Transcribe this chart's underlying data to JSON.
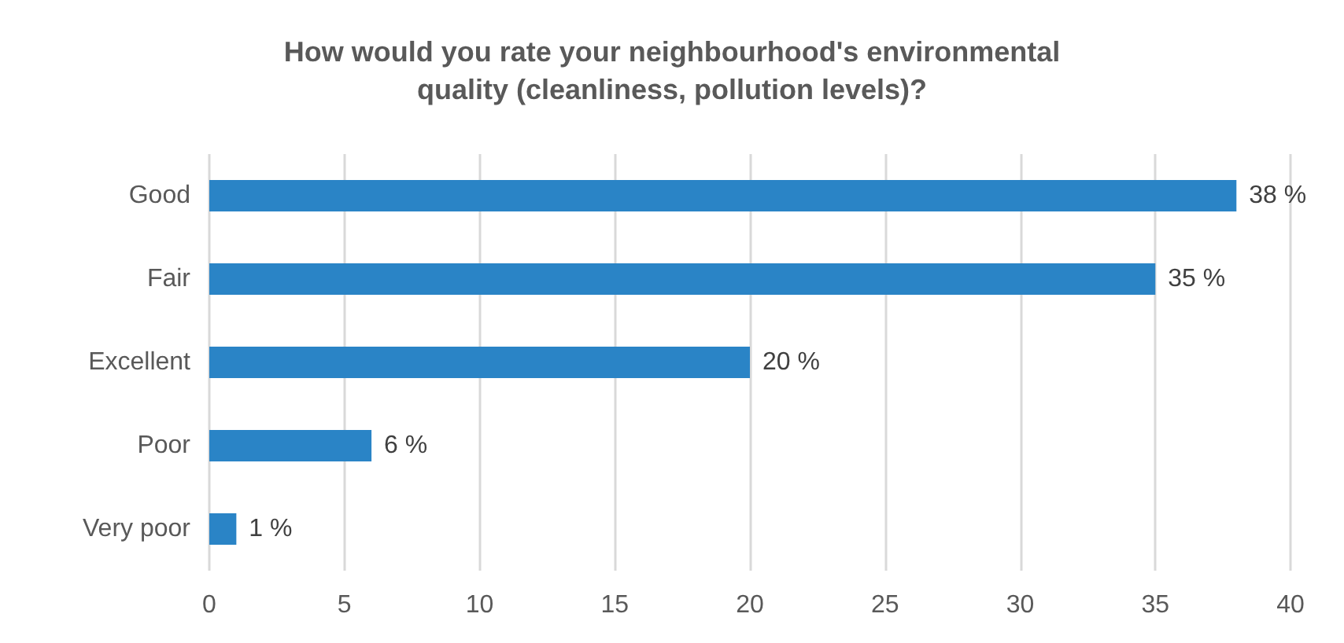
{
  "chart_data": {
    "type": "bar",
    "orientation": "horizontal",
    "title": "How would you rate your neighbourhood's environmental\nquality (cleanliness, pollution levels)?",
    "categories": [
      "Good",
      "Fair",
      "Excellent",
      "Poor",
      "Very poor"
    ],
    "values": [
      38,
      35,
      20,
      6,
      1
    ],
    "value_labels": [
      "38 %",
      "35 %",
      "20 %",
      "6 %",
      "1 %"
    ],
    "color": "#2a84c6",
    "xlim": [
      0,
      40
    ],
    "xticks": [
      0,
      5,
      10,
      15,
      20,
      25,
      30,
      35,
      40
    ],
    "grid": "x"
  }
}
